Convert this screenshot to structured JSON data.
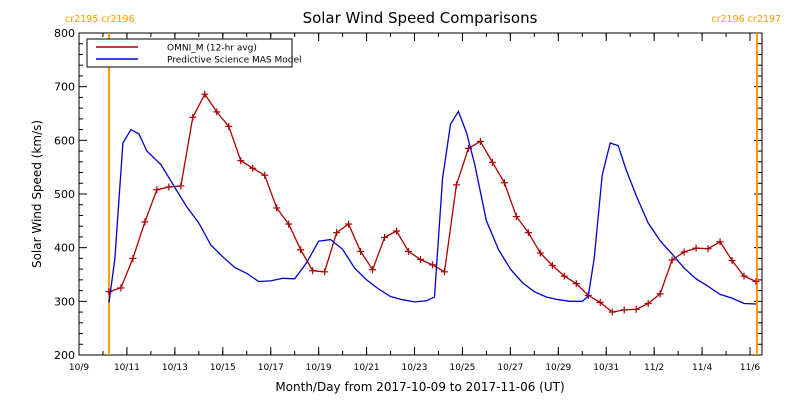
{
  "chart_data": {
    "type": "line",
    "title": "Solar Wind Speed Comparisons",
    "xlabel": "Month/Day from 2017-10-09 to 2017-11-06 (UT)",
    "ylabel": "Solar Wind Speed (km/s)",
    "ylim": [
      200,
      800
    ],
    "y_ticks": [
      200,
      300,
      400,
      500,
      600,
      700,
      800
    ],
    "xlim": [
      "2017-10-09",
      "2017-11-06T12:00"
    ],
    "x_ticks": [
      {
        "date": "2017-10-09",
        "label": "10/9"
      },
      {
        "date": "2017-10-11",
        "label": "10/11"
      },
      {
        "date": "2017-10-13",
        "label": "10/13"
      },
      {
        "date": "2017-10-15",
        "label": "10/15"
      },
      {
        "date": "2017-10-17",
        "label": "10/17"
      },
      {
        "date": "2017-10-19",
        "label": "10/19"
      },
      {
        "date": "2017-10-21",
        "label": "10/21"
      },
      {
        "date": "2017-10-23",
        "label": "10/23"
      },
      {
        "date": "2017-10-25",
        "label": "10/25"
      },
      {
        "date": "2017-10-27",
        "label": "10/27"
      },
      {
        "date": "2017-10-29",
        "label": "10/29"
      },
      {
        "date": "2017-10-31",
        "label": "10/31"
      },
      {
        "date": "2017-11-02",
        "label": "11/2"
      },
      {
        "date": "2017-11-04",
        "label": "11/4"
      },
      {
        "date": "2017-11-06",
        "label": "11/6"
      }
    ],
    "carrington_boundaries": [
      {
        "date": "2017-10-10T06:00",
        "label": "cr2195 cr2196",
        "side": "left"
      },
      {
        "date": "2017-11-06T07:00",
        "label": "cr2196 cr2197",
        "side": "right"
      }
    ],
    "legend_position": "top-left",
    "series": [
      {
        "name": "OMNI_M (12-hr avg)",
        "color": "#aa0000",
        "marker": "+",
        "points": [
          [
            "2017-10-10T06:00",
            318
          ],
          [
            "2017-10-10T18:00",
            325
          ],
          [
            "2017-10-11T06:00",
            380
          ],
          [
            "2017-10-11T18:00",
            448
          ],
          [
            "2017-10-12T06:00",
            508
          ],
          [
            "2017-10-12T18:00",
            513
          ],
          [
            "2017-10-13T06:00",
            515
          ],
          [
            "2017-10-13T18:00",
            643
          ],
          [
            "2017-10-14T06:00",
            686
          ],
          [
            "2017-10-14T18:00",
            653
          ],
          [
            "2017-10-15T06:00",
            626
          ],
          [
            "2017-10-15T18:00",
            562
          ],
          [
            "2017-10-16T06:00",
            548
          ],
          [
            "2017-10-16T18:00",
            535
          ],
          [
            "2017-10-17T06:00",
            474
          ],
          [
            "2017-10-17T18:00",
            444
          ],
          [
            "2017-10-18T06:00",
            396
          ],
          [
            "2017-10-18T18:00",
            357
          ],
          [
            "2017-10-19T06:00",
            355
          ],
          [
            "2017-10-19T18:00",
            428
          ],
          [
            "2017-10-20T06:00",
            444
          ],
          [
            "2017-10-20T18:00",
            393
          ],
          [
            "2017-10-21T06:00",
            359
          ],
          [
            "2017-10-21T18:00",
            419
          ],
          [
            "2017-10-22T06:00",
            431
          ],
          [
            "2017-10-22T18:00",
            393
          ],
          [
            "2017-10-23T06:00",
            378
          ],
          [
            "2017-10-23T18:00",
            368
          ],
          [
            "2017-10-24T06:00",
            355
          ],
          [
            "2017-10-24T18:00",
            517
          ],
          [
            "2017-10-25T06:00",
            585
          ],
          [
            "2017-10-25T18:00",
            598
          ],
          [
            "2017-10-26T06:00",
            559
          ],
          [
            "2017-10-26T18:00",
            521
          ],
          [
            "2017-10-27T06:00",
            458
          ],
          [
            "2017-10-27T18:00",
            428
          ],
          [
            "2017-10-28T06:00",
            390
          ],
          [
            "2017-10-28T18:00",
            367
          ],
          [
            "2017-10-29T06:00",
            347
          ],
          [
            "2017-10-29T18:00",
            333
          ],
          [
            "2017-10-30T06:00",
            311
          ],
          [
            "2017-10-30T18:00",
            298
          ],
          [
            "2017-10-31T06:00",
            280
          ],
          [
            "2017-10-31T18:00",
            284
          ],
          [
            "2017-11-01T06:00",
            285
          ],
          [
            "2017-11-01T18:00",
            296
          ],
          [
            "2017-11-02T06:00",
            314
          ],
          [
            "2017-11-02T18:00",
            377
          ],
          [
            "2017-11-03T06:00",
            392
          ],
          [
            "2017-11-03T18:00",
            399
          ],
          [
            "2017-11-04T06:00",
            398
          ],
          [
            "2017-11-04T18:00",
            411
          ],
          [
            "2017-11-05T06:00",
            376
          ],
          [
            "2017-11-05T18:00",
            347
          ],
          [
            "2017-11-06T06:00",
            337
          ]
        ]
      },
      {
        "name": "Predictive Science MAS Model",
        "color": "#0000cc",
        "marker": "",
        "points": [
          [
            "2017-10-10T06:00",
            298
          ],
          [
            "2017-10-10T12:00",
            380
          ],
          [
            "2017-10-10T20:00",
            595
          ],
          [
            "2017-10-11T04:00",
            620
          ],
          [
            "2017-10-11T12:00",
            612
          ],
          [
            "2017-10-11T20:00",
            580
          ],
          [
            "2017-10-12T10:00",
            555
          ],
          [
            "2017-10-13T00:00",
            512
          ],
          [
            "2017-10-13T12:00",
            476
          ],
          [
            "2017-10-14T00:00",
            446
          ],
          [
            "2017-10-14T12:00",
            405
          ],
          [
            "2017-10-15T00:00",
            383
          ],
          [
            "2017-10-15T12:00",
            363
          ],
          [
            "2017-10-16T00:00",
            352
          ],
          [
            "2017-10-16T12:00",
            337
          ],
          [
            "2017-10-17T00:00",
            338
          ],
          [
            "2017-10-17T12:00",
            343
          ],
          [
            "2017-10-18T00:00",
            342
          ],
          [
            "2017-10-18T12:00",
            372
          ],
          [
            "2017-10-19T00:00",
            412
          ],
          [
            "2017-10-19T12:00",
            415
          ],
          [
            "2017-10-20T00:00",
            397
          ],
          [
            "2017-10-20T12:00",
            362
          ],
          [
            "2017-10-21T00:00",
            340
          ],
          [
            "2017-10-21T12:00",
            323
          ],
          [
            "2017-10-22T00:00",
            309
          ],
          [
            "2017-10-22T12:00",
            303
          ],
          [
            "2017-10-23T00:00",
            299
          ],
          [
            "2017-10-23T12:00",
            301
          ],
          [
            "2017-10-23T20:00",
            308
          ],
          [
            "2017-10-24T04:00",
            528
          ],
          [
            "2017-10-24T12:00",
            630
          ],
          [
            "2017-10-24T20:00",
            654
          ],
          [
            "2017-10-25T04:00",
            615
          ],
          [
            "2017-10-25T12:00",
            558
          ],
          [
            "2017-10-26T00:00",
            450
          ],
          [
            "2017-10-26T12:00",
            397
          ],
          [
            "2017-10-27T00:00",
            360
          ],
          [
            "2017-10-27T12:00",
            335
          ],
          [
            "2017-10-28T00:00",
            318
          ],
          [
            "2017-10-28T12:00",
            308
          ],
          [
            "2017-10-29T00:00",
            303
          ],
          [
            "2017-10-29T12:00",
            300
          ],
          [
            "2017-10-30T00:00",
            300
          ],
          [
            "2017-10-30T06:00",
            310
          ],
          [
            "2017-10-30T12:00",
            380
          ],
          [
            "2017-10-30T20:00",
            535
          ],
          [
            "2017-10-31T04:00",
            595
          ],
          [
            "2017-10-31T12:00",
            590
          ],
          [
            "2017-10-31T20:00",
            545
          ],
          [
            "2017-11-01T06:00",
            497
          ],
          [
            "2017-11-01T18:00",
            446
          ],
          [
            "2017-11-02T06:00",
            413
          ],
          [
            "2017-11-02T18:00",
            388
          ],
          [
            "2017-11-03T06:00",
            362
          ],
          [
            "2017-11-03T18:00",
            342
          ],
          [
            "2017-11-04T06:00",
            328
          ],
          [
            "2017-11-04T18:00",
            313
          ],
          [
            "2017-11-05T06:00",
            306
          ],
          [
            "2017-11-05T18:00",
            296
          ],
          [
            "2017-11-06T06:00",
            295
          ]
        ]
      }
    ]
  }
}
